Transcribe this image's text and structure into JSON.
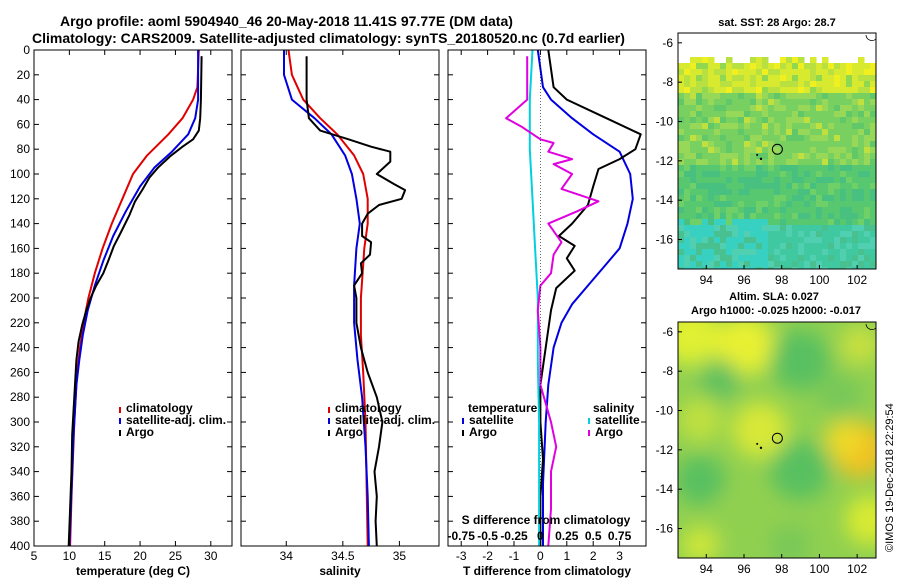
{
  "title_line1": "Argo profile: aoml 5904940_46 20-May-2018 11.41S 97.77E (DM data)",
  "title_line2": "Climatology: CARS2009. Satellite-adjusted climatology: synTS_20180520.nc (0.7d earlier)",
  "credit": "©IMOS 19-Dec-2018 22:29:54",
  "colors": {
    "climatology": "#e00000",
    "satellite": "#0000e0",
    "argo": "#000000",
    "salinity_diff": "#e000e0",
    "sat_salinity": "#00d0e0"
  },
  "chart_data": [
    {
      "type": "line",
      "name": "temperature-profile",
      "xlabel": "temperature (deg C)",
      "ylabel": "",
      "xlim": [
        5,
        33
      ],
      "ylim": [
        400,
        0
      ],
      "xticks": [
        "5",
        "10",
        "15",
        "20",
        "25",
        "30"
      ],
      "xtick_values": [
        5,
        10,
        15,
        20,
        25,
        30
      ],
      "yticks": [
        "0",
        "20",
        "40",
        "60",
        "80",
        "100",
        "120",
        "140",
        "160",
        "180",
        "200",
        "220",
        "240",
        "260",
        "280",
        "300",
        "320",
        "340",
        "360",
        "380",
        "400"
      ],
      "ytick_values": [
        0,
        20,
        40,
        60,
        80,
        100,
        120,
        140,
        160,
        180,
        200,
        220,
        240,
        260,
        280,
        300,
        320,
        340,
        360,
        380,
        400
      ],
      "legend": [
        "climatology",
        "satellite-adj. clim.",
        "Argo"
      ],
      "series": [
        {
          "name": "climatology",
          "color": "#e00000",
          "points": [
            [
              28.3,
              0
            ],
            [
              28.1,
              30
            ],
            [
              27.5,
              40
            ],
            [
              26,
              55
            ],
            [
              24,
              68
            ],
            [
              21,
              85
            ],
            [
              19,
              100
            ],
            [
              17.5,
              120
            ],
            [
              16,
              140
            ],
            [
              14.7,
              160
            ],
            [
              13.6,
              180
            ],
            [
              12.7,
              200
            ],
            [
              12,
              220
            ],
            [
              11.5,
              240
            ],
            [
              11.1,
              260
            ],
            [
              10.9,
              280
            ],
            [
              10.7,
              300
            ],
            [
              10.5,
              330
            ],
            [
              10.3,
              360
            ],
            [
              10.1,
              400
            ]
          ]
        },
        {
          "name": "satellite-adj. clim.",
          "color": "#0000e0",
          "points": [
            [
              28.2,
              0
            ],
            [
              28.2,
              40
            ],
            [
              27.8,
              55
            ],
            [
              26.8,
              68
            ],
            [
              24.5,
              82
            ],
            [
              22,
              95
            ],
            [
              20,
              110
            ],
            [
              18,
              130
            ],
            [
              16.2,
              150
            ],
            [
              14.8,
              170
            ],
            [
              13.6,
              190
            ],
            [
              12.6,
              210
            ],
            [
              11.9,
              230
            ],
            [
              11.4,
              250
            ],
            [
              11,
              270
            ],
            [
              10.8,
              290
            ],
            [
              10.6,
              310
            ],
            [
              10.4,
              340
            ],
            [
              10.2,
              370
            ],
            [
              10,
              400
            ]
          ]
        },
        {
          "name": "Argo",
          "color": "#000000",
          "points": [
            [
              28.7,
              5
            ],
            [
              28.6,
              40
            ],
            [
              28.5,
              55
            ],
            [
              28.3,
              65
            ],
            [
              27.5,
              72
            ],
            [
              26,
              78
            ],
            [
              24.2,
              86
            ],
            [
              22.5,
              95
            ],
            [
              21.3,
              103
            ],
            [
              20.4,
              112
            ],
            [
              19.3,
              122
            ],
            [
              18.5,
              133
            ],
            [
              17.2,
              148
            ],
            [
              16.3,
              158
            ],
            [
              15.5,
              170
            ],
            [
              14.8,
              180
            ],
            [
              13.8,
              190
            ],
            [
              13,
              200
            ],
            [
              12.4,
              210
            ],
            [
              11.8,
              222
            ],
            [
              11.3,
              235
            ],
            [
              11,
              250
            ],
            [
              10.8,
              270
            ],
            [
              10.6,
              290
            ],
            [
              10.4,
              310
            ],
            [
              10.3,
              340
            ],
            [
              10.1,
              370
            ],
            [
              9.9,
              400
            ]
          ]
        }
      ]
    },
    {
      "type": "line",
      "name": "salinity-profile",
      "xlabel": "salinity",
      "xlim": [
        33.6,
        35.35
      ],
      "ylim": [
        400,
        0
      ],
      "xticks": [
        "34",
        "34.5",
        "35"
      ],
      "xtick_values": [
        34,
        34.5,
        35
      ],
      "legend": [
        "climatology",
        "satellite-adj. clim.",
        "Argo"
      ],
      "series": [
        {
          "name": "climatology",
          "color": "#e00000",
          "points": [
            [
              34.02,
              0
            ],
            [
              34.05,
              20
            ],
            [
              34.15,
              40
            ],
            [
              34.3,
              55
            ],
            [
              34.45,
              68
            ],
            [
              34.6,
              85
            ],
            [
              34.68,
              100
            ],
            [
              34.72,
              120
            ],
            [
              34.72,
              140
            ],
            [
              34.69,
              160
            ],
            [
              34.66,
              200
            ],
            [
              34.66,
              230
            ],
            [
              34.68,
              260
            ],
            [
              34.7,
              300
            ],
            [
              34.72,
              400
            ]
          ]
        },
        {
          "name": "satellite-adj. clim.",
          "color": "#0000e0",
          "points": [
            [
              33.98,
              0
            ],
            [
              33.98,
              20
            ],
            [
              34.05,
              40
            ],
            [
              34.25,
              55
            ],
            [
              34.4,
              68
            ],
            [
              34.52,
              85
            ],
            [
              34.58,
              100
            ],
            [
              34.62,
              120
            ],
            [
              34.65,
              140
            ],
            [
              34.62,
              160
            ],
            [
              34.6,
              190
            ],
            [
              34.6,
              220
            ],
            [
              34.63,
              250
            ],
            [
              34.67,
              280
            ],
            [
              34.7,
              320
            ],
            [
              34.72,
              360
            ],
            [
              34.73,
              400
            ]
          ]
        },
        {
          "name": "Argo",
          "color": "#000000",
          "points": [
            [
              34.18,
              5
            ],
            [
              34.18,
              40
            ],
            [
              34.2,
              55
            ],
            [
              34.3,
              65
            ],
            [
              34.55,
              72
            ],
            [
              34.75,
              78
            ],
            [
              34.92,
              82
            ],
            [
              34.92,
              90
            ],
            [
              34.8,
              100
            ],
            [
              34.95,
              108
            ],
            [
              35.05,
              113
            ],
            [
              35.02,
              120
            ],
            [
              34.82,
              125
            ],
            [
              34.72,
              132
            ],
            [
              34.67,
              140
            ],
            [
              34.67,
              150
            ],
            [
              34.75,
              155
            ],
            [
              34.74,
              165
            ],
            [
              34.66,
              172
            ],
            [
              34.67,
              180
            ],
            [
              34.6,
              190
            ],
            [
              34.62,
              200
            ],
            [
              34.62,
              220
            ],
            [
              34.66,
              240
            ],
            [
              34.72,
              260
            ],
            [
              34.8,
              280
            ],
            [
              34.85,
              300
            ],
            [
              34.82,
              320
            ],
            [
              34.78,
              340
            ],
            [
              34.8,
              360
            ],
            [
              34.79,
              380
            ],
            [
              34.8,
              400
            ]
          ]
        }
      ]
    },
    {
      "type": "line",
      "name": "difference-profile",
      "xlabel": "T difference from climatology",
      "xlabel_top": "S difference from climatology",
      "xlim": [
        -3.5,
        4
      ],
      "ylim": [
        400,
        0
      ],
      "xticks": [
        "-3",
        "-2",
        "-1",
        "0",
        "1",
        "2",
        "3"
      ],
      "xtick_values": [
        -3,
        -2,
        -1,
        0,
        1,
        2,
        3
      ],
      "s_xticks": [
        "-0.75",
        "-0.5",
        "-0.25",
        "0",
        "0.25",
        "0.5",
        "0.75"
      ],
      "legend_temperature": [
        "temperature",
        "satellite",
        "Argo"
      ],
      "legend_salinity": [
        "salinity",
        "satellite",
        "Argo"
      ],
      "series": [
        {
          "name": "temperature satellite",
          "color": "#0000e0",
          "points": [
            [
              -0.1,
              0
            ],
            [
              0.1,
              30
            ],
            [
              0.4,
              40
            ],
            [
              1.2,
              55
            ],
            [
              2,
              68
            ],
            [
              3,
              82
            ],
            [
              3.4,
              100
            ],
            [
              3.5,
              120
            ],
            [
              3.3,
              140
            ],
            [
              3,
              160
            ],
            [
              2.4,
              175
            ],
            [
              1.8,
              190
            ],
            [
              1.2,
              205
            ],
            [
              0.8,
              220
            ],
            [
              0.5,
              240
            ],
            [
              0.3,
              270
            ],
            [
              0.2,
              300
            ],
            [
              0.1,
              350
            ],
            [
              0.1,
              400
            ]
          ]
        },
        {
          "name": "temperature Argo",
          "color": "#000000",
          "points": [
            [
              0.3,
              0
            ],
            [
              0.5,
              30
            ],
            [
              1,
              40
            ],
            [
              2.5,
              55
            ],
            [
              3.8,
              68
            ],
            [
              3.6,
              80
            ],
            [
              3,
              88
            ],
            [
              2.2,
              96
            ],
            [
              2,
              110
            ],
            [
              1.8,
              125
            ],
            [
              1.2,
              140
            ],
            [
              0.7,
              150
            ],
            [
              1.3,
              158
            ],
            [
              1,
              168
            ],
            [
              1.3,
              178
            ],
            [
              0.6,
              192
            ],
            [
              0.4,
              210
            ],
            [
              0.2,
              240
            ],
            [
              0,
              270
            ],
            [
              0,
              300
            ],
            [
              0.1,
              330
            ],
            [
              0,
              360
            ],
            [
              0,
              400
            ]
          ]
        },
        {
          "name": "salinity satellite",
          "color": "#00d0e0",
          "points": [
            [
              -0.3,
              0
            ],
            [
              -0.4,
              40
            ],
            [
              -0.4,
              80
            ],
            [
              -0.3,
              120
            ],
            [
              -0.2,
              160
            ],
            [
              -0.1,
              200
            ],
            [
              -0.1,
              250
            ],
            [
              -0.05,
              300
            ],
            [
              -0.05,
              400
            ]
          ]
        },
        {
          "name": "salinity Argo",
          "color": "#e000e0",
          "points": [
            [
              -0.5,
              5
            ],
            [
              -0.5,
              40
            ],
            [
              -1.3,
              55
            ],
            [
              -0.7,
              62
            ],
            [
              0,
              72
            ],
            [
              0.5,
              75
            ],
            [
              0.3,
              82
            ],
            [
              1.2,
              88
            ],
            [
              0.5,
              92
            ],
            [
              1.2,
              100
            ],
            [
              0.8,
              112
            ],
            [
              2.2,
              122
            ],
            [
              1.4,
              130
            ],
            [
              0.3,
              140
            ],
            [
              0.8,
              155
            ],
            [
              0.5,
              165
            ],
            [
              0.4,
              180
            ],
            [
              0,
              190
            ],
            [
              -0.1,
              210
            ],
            [
              0,
              240
            ],
            [
              0,
              270
            ],
            [
              0.4,
              300
            ],
            [
              0.6,
              320
            ],
            [
              0.4,
              340
            ],
            [
              0.4,
              370
            ],
            [
              0.3,
              400
            ]
          ]
        }
      ]
    },
    {
      "type": "heatmap",
      "name": "sst-map",
      "title": "sat. SST: 28 Argo: 28.7",
      "xlim": [
        92.5,
        103
      ],
      "ylim": [
        -17.5,
        -5.5
      ],
      "xticks": [
        "94",
        "96",
        "98",
        "100",
        "102"
      ],
      "xtick_values": [
        94,
        96,
        98,
        100,
        102
      ],
      "yticks": [
        "-6",
        "-8",
        "-10",
        "-12",
        "-14",
        "-16"
      ],
      "ytick_values": [
        -6,
        -8,
        -10,
        -12,
        -14,
        -16
      ],
      "profile_location": [
        97.77,
        -11.41
      ]
    },
    {
      "type": "heatmap",
      "name": "sla-map",
      "title1": "Altim. SLA: 0.027",
      "title2": "Argo h1000: -0.025 h2000: -0.017",
      "xlim": [
        92.5,
        103
      ],
      "ylim": [
        -17.5,
        -5.5
      ],
      "xticks": [
        "94",
        "96",
        "98",
        "100",
        "102"
      ],
      "xtick_values": [
        94,
        96,
        98,
        100,
        102
      ],
      "yticks": [
        "-6",
        "-8",
        "-10",
        "-12",
        "-14",
        "-16"
      ],
      "ytick_values": [
        -6,
        -8,
        -10,
        -12,
        -14,
        -16
      ],
      "profile_location": [
        97.77,
        -11.41
      ]
    }
  ]
}
